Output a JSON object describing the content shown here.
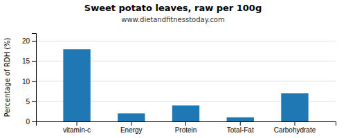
{
  "chart_data": {
    "type": "bar",
    "title": "Sweet potato leaves, raw per 100g",
    "subtitle": "www.dietandfitnesstoday.com",
    "categories": [
      "vitamin-c",
      "Energy",
      "Protein",
      "Total-Fat",
      "Carbohydrate"
    ],
    "values": [
      18,
      2,
      4,
      1,
      7
    ],
    "ylabel": "Percentage of RDH (%)",
    "ylim": [
      0,
      22
    ],
    "yticks": [
      0,
      5,
      10,
      15,
      20
    ],
    "grid": true
  }
}
